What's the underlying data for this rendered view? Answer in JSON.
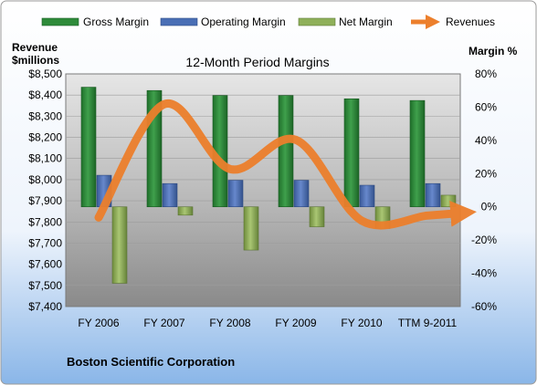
{
  "chart_data": {
    "type": "bar",
    "title": "12-Month Period Margins",
    "company": "Boston Scientific Corporation",
    "categories": [
      "FY 2006",
      "FY 2007",
      "FY 2008",
      "FY 2009",
      "FY 2010",
      "TTM 9-2011"
    ],
    "left_axis": {
      "label_line1": "Revenue",
      "label_line2": "$millions",
      "range": [
        7400,
        8500
      ],
      "ticks": [
        7400,
        7500,
        7600,
        7700,
        7800,
        7900,
        8000,
        8100,
        8200,
        8300,
        8400,
        8500
      ],
      "tick_labels": [
        "$7,400",
        "$7,500",
        "$7,600",
        "$7,700",
        "$7,800",
        "$7,900",
        "$8,000",
        "$8,100",
        "$8,200",
        "$8,300",
        "$8,400",
        "$8,500"
      ]
    },
    "right_axis": {
      "label": "Margin %",
      "range": [
        -60,
        80
      ],
      "ticks": [
        -60,
        -40,
        -20,
        0,
        20,
        40,
        60,
        80
      ],
      "tick_labels": [
        "-60%",
        "-40%",
        "-20%",
        "0%",
        "20%",
        "40%",
        "60%",
        "80%"
      ]
    },
    "series": [
      {
        "name": "Gross Margin",
        "axis": "right",
        "kind": "bar",
        "color": "#2e8b3a",
        "values": [
          72,
          70,
          67,
          67,
          65,
          64
        ]
      },
      {
        "name": "Operating Margin",
        "axis": "right",
        "kind": "bar",
        "color": "#4a6fb5",
        "values": [
          19,
          14,
          16,
          16,
          13,
          14
        ]
      },
      {
        "name": "Net Margin",
        "axis": "right",
        "kind": "bar",
        "color": "#8fb05a",
        "values": [
          -46,
          -5,
          -26,
          -12,
          -13,
          7
        ]
      },
      {
        "name": "Revenues",
        "axis": "left",
        "kind": "line",
        "color": "#ec7f2c",
        "values": [
          7821,
          8357,
          8050,
          8188,
          7806,
          7830
        ]
      }
    ],
    "legend_position": "top",
    "grid": true
  }
}
